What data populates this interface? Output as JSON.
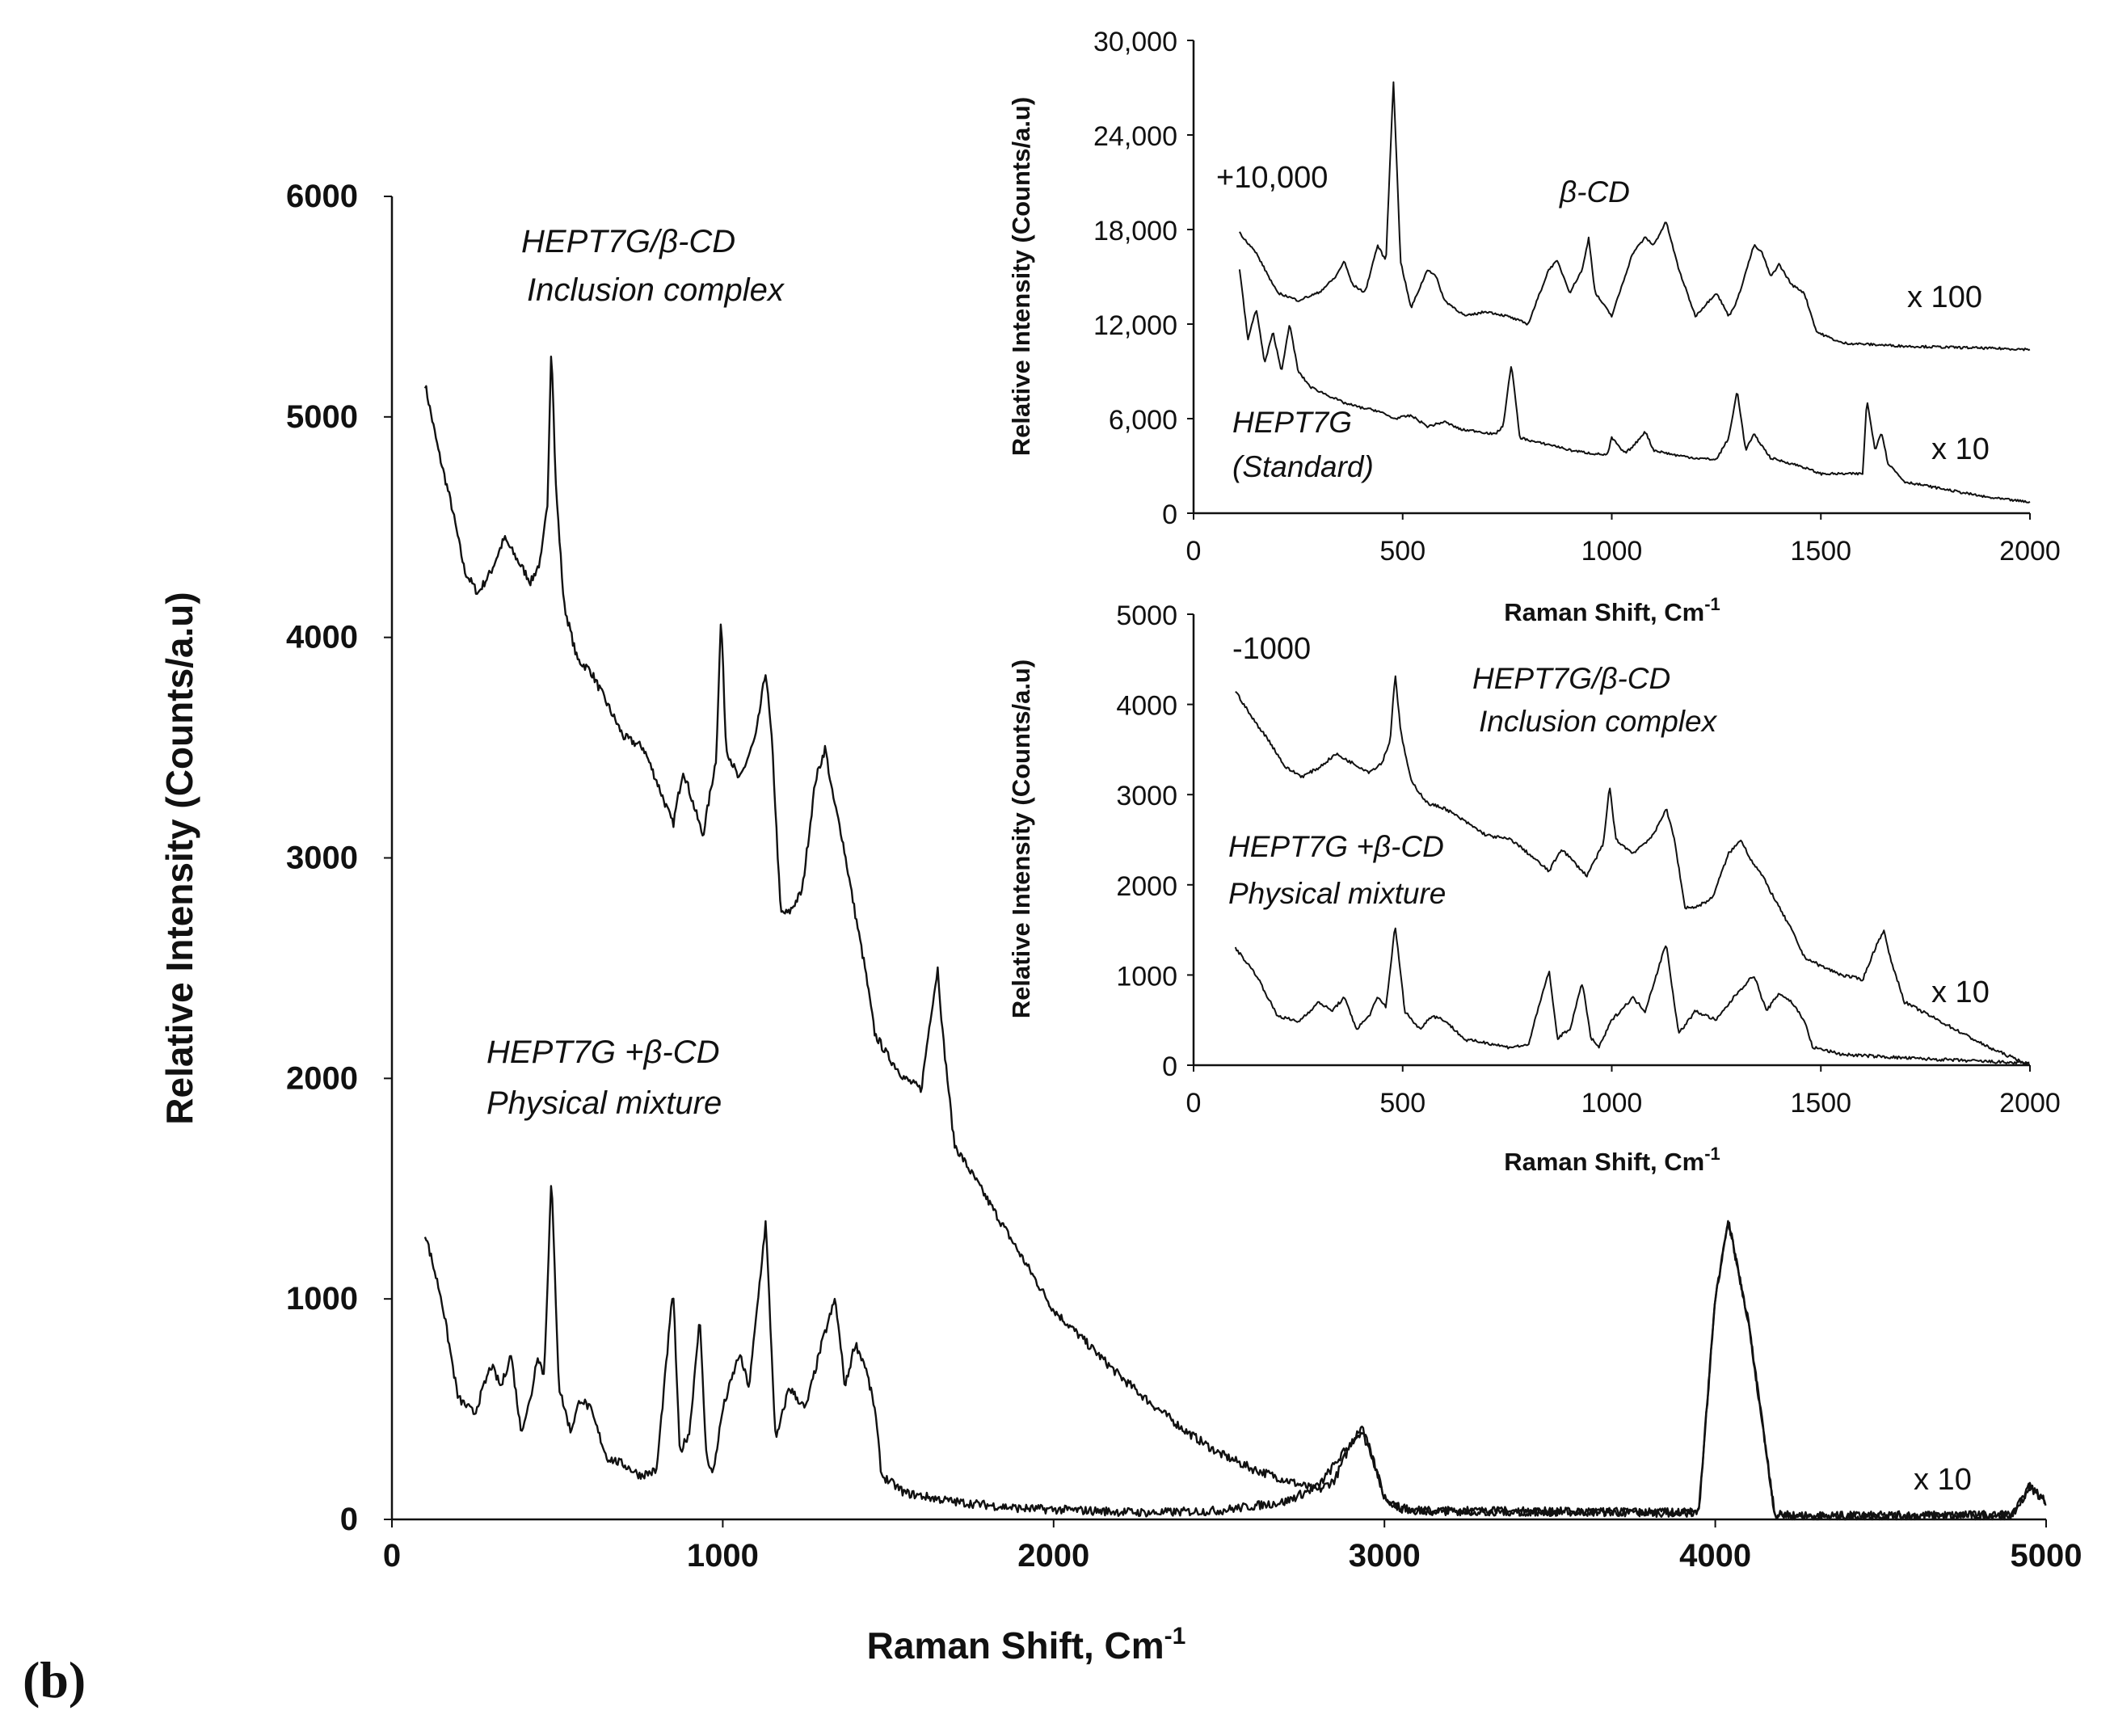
{
  "panel_label": "(b)",
  "chart_data": [
    {
      "id": "main",
      "type": "line",
      "xlabel": "Raman Shift, Cm",
      "xlabel_superscript": "-1",
      "ylabel": "Relative Intensity (Counts/a.u)",
      "xlim": [
        0,
        5000
      ],
      "ylim": [
        0,
        6000
      ],
      "x_ticks": [
        "0",
        "1000",
        "2000",
        "3000",
        "4000",
        "5000"
      ],
      "y_ticks": [
        "0",
        "1000",
        "2000",
        "3000",
        "4000",
        "5000",
        "6000"
      ],
      "annotations": [
        "HEPT7G/β-CD",
        "Inclusion complex",
        "HEPT7G +β-CD",
        "Physical mixture",
        "x 10"
      ],
      "series": [
        {
          "name": "HEPT7G/β-CD Inclusion complex",
          "x": [
            100,
            140,
            180,
            220,
            260,
            300,
            340,
            380,
            420,
            450,
            470,
            482,
            495,
            520,
            560,
            600,
            650,
            700,
            760,
            800,
            850,
            880,
            900,
            940,
            980,
            995,
            1010,
            1050,
            1100,
            1130,
            1150,
            1175,
            1200,
            1240,
            1280,
            1310,
            1330,
            1360,
            1400,
            1430,
            1460,
            1500,
            1550,
            1600,
            1630,
            1650,
            1665,
            1700,
            1800,
            1900,
            2000,
            2100,
            2200,
            2300,
            2400,
            2500,
            2600,
            2700,
            2800,
            2850,
            2900,
            2930,
            2960,
            3000,
            3050,
            3100,
            3500,
            3950,
            4000,
            4040,
            4100,
            4180,
            4300,
            4900,
            4950,
            5000
          ],
          "y": [
            5150,
            4850,
            4600,
            4300,
            4200,
            4300,
            4450,
            4350,
            4250,
            4350,
            4600,
            5350,
            4700,
            4150,
            3900,
            3850,
            3700,
            3550,
            3500,
            3350,
            3150,
            3400,
            3300,
            3100,
            3450,
            4100,
            3500,
            3350,
            3550,
            3850,
            3500,
            2750,
            2750,
            2850,
            3350,
            3500,
            3300,
            3100,
            2750,
            2500,
            2200,
            2100,
            2000,
            1950,
            2300,
            2500,
            2200,
            1700,
            1450,
            1200,
            950,
            800,
            650,
            520,
            400,
            300,
            230,
            180,
            130,
            180,
            350,
            400,
            300,
            100,
            50,
            40,
            35,
            30,
            1000,
            1350,
            900,
            20,
            15,
            20,
            150,
            80
          ]
        },
        {
          "name": "HEPT7G +β-CD Physical mixture",
          "x": [
            100,
            150,
            200,
            250,
            300,
            330,
            360,
            390,
            420,
            440,
            460,
            482,
            505,
            540,
            570,
            600,
            650,
            700,
            750,
            800,
            850,
            870,
            900,
            930,
            950,
            970,
            1000,
            1050,
            1080,
            1100,
            1130,
            1160,
            1200,
            1250,
            1300,
            1340,
            1370,
            1400,
            1430,
            1460,
            1480,
            1550,
            1700,
            1900,
            2100,
            2300,
            2500,
            2700,
            2800,
            2850,
            2900,
            2930,
            2960,
            3000,
            3050,
            3100,
            3500,
            3950,
            4000,
            4040,
            4100,
            4180,
            4300,
            4900,
            4950,
            5000
          ],
          "y": [
            1300,
            1000,
            550,
            480,
            700,
            600,
            750,
            400,
            550,
            750,
            650,
            1550,
            600,
            400,
            550,
            500,
            280,
            250,
            200,
            220,
            1050,
            300,
            400,
            920,
            300,
            200,
            500,
            750,
            600,
            900,
            1350,
            350,
            600,
            500,
            800,
            1000,
            600,
            800,
            700,
            500,
            200,
            120,
            80,
            50,
            40,
            30,
            40,
            80,
            150,
            250,
            350,
            420,
            300,
            100,
            50,
            40,
            35,
            30,
            1000,
            1350,
            900,
            20,
            15,
            20,
            150,
            80
          ]
        }
      ]
    },
    {
      "id": "inset_top",
      "type": "line",
      "xlabel": "Raman Shift, Cm",
      "xlabel_superscript": "-1",
      "ylabel": "Relative Intensity (Counts/a.u)",
      "xlim": [
        0,
        2000
      ],
      "ylim": [
        0,
        30000
      ],
      "x_ticks": [
        "0",
        "500",
        "1000",
        "1500",
        "2000"
      ],
      "y_ticks": [
        "0",
        "6,000",
        "12,000",
        "18,000",
        "24,000",
        "30,000"
      ],
      "annotations": [
        "+10,000",
        "β-CD",
        "x 100",
        "HEPT7G",
        "(Standard)",
        "x 10"
      ],
      "series": [
        {
          "name": "β-CD",
          "x": [
            110,
            150,
            200,
            250,
            300,
            340,
            360,
            380,
            410,
            440,
            460,
            478,
            495,
            520,
            560,
            580,
            600,
            650,
            700,
            750,
            800,
            850,
            870,
            900,
            930,
            945,
            960,
            1000,
            1050,
            1080,
            1100,
            1130,
            1160,
            1200,
            1250,
            1280,
            1300,
            1340,
            1360,
            1380,
            1400,
            1430,
            1460,
            1490,
            1550,
            1700,
            1850,
            2000
          ],
          "y": [
            17800,
            16500,
            14000,
            13500,
            14000,
            15000,
            16000,
            14500,
            14000,
            17000,
            16000,
            27500,
            16000,
            13000,
            15500,
            15000,
            13500,
            12500,
            12800,
            12500,
            12000,
            15500,
            16000,
            14000,
            15500,
            17500,
            14000,
            12500,
            16500,
            17500,
            17000,
            18500,
            15500,
            12500,
            14000,
            12500,
            13500,
            17000,
            16500,
            15000,
            15800,
            14500,
            14000,
            11500,
            10800,
            10600,
            10500,
            10400
          ]
        },
        {
          "name": "HEPT7G (Standard)",
          "x": [
            110,
            130,
            150,
            170,
            190,
            210,
            230,
            250,
            280,
            320,
            360,
            400,
            440,
            480,
            520,
            560,
            600,
            640,
            680,
            720,
            740,
            760,
            780,
            820,
            860,
            900,
            950,
            990,
            1000,
            1030,
            1050,
            1080,
            1100,
            1150,
            1200,
            1250,
            1280,
            1300,
            1320,
            1340,
            1380,
            1450,
            1500,
            1550,
            1600,
            1610,
            1630,
            1645,
            1660,
            1700,
            1800,
            1900,
            2000
          ],
          "y": [
            15500,
            11000,
            13000,
            9500,
            11500,
            9000,
            12000,
            9000,
            8000,
            7500,
            7000,
            6700,
            6500,
            6000,
            6200,
            5500,
            5800,
            5300,
            5200,
            5000,
            5500,
            9500,
            4800,
            4500,
            4300,
            4000,
            3800,
            3700,
            4800,
            3800,
            4200,
            5200,
            4000,
            3700,
            3500,
            3400,
            4800,
            7800,
            4000,
            5000,
            3500,
            3000,
            2500,
            2500,
            2500,
            7200,
            4000,
            5200,
            3200,
            2000,
            1500,
            1000,
            700
          ]
        }
      ]
    },
    {
      "id": "inset_bottom",
      "type": "line",
      "xlabel": "Raman Shift, Cm",
      "xlabel_superscript": "-1",
      "ylabel": "Relative Intensity (Counts/a.u)",
      "xlim": [
        0,
        2000
      ],
      "ylim": [
        0,
        5000
      ],
      "x_ticks": [
        "0",
        "500",
        "1000",
        "1500",
        "2000"
      ],
      "y_ticks": [
        "0",
        "1000",
        "2000",
        "3000",
        "4000",
        "5000"
      ],
      "annotations": [
        "-1000",
        "HEPT7G/β-CD",
        "Inclusion complex",
        "HEPT7G +β-CD",
        "Physical mixture",
        "x 10"
      ],
      "series": [
        {
          "name": "HEPT7G/β-CD Inclusion complex (-1000)",
          "x": [
            100,
            140,
            180,
            220,
            260,
            300,
            340,
            380,
            420,
            450,
            470,
            482,
            495,
            520,
            560,
            600,
            650,
            700,
            760,
            800,
            850,
            880,
            900,
            940,
            980,
            995,
            1010,
            1050,
            1100,
            1130,
            1150,
            1175,
            1200,
            1240,
            1280,
            1310,
            1330,
            1360,
            1400,
            1430,
            1460,
            1500,
            1550,
            1600,
            1630,
            1650,
            1665,
            1700,
            1800,
            1900,
            2000
          ],
          "y": [
            4150,
            3850,
            3600,
            3300,
            3200,
            3300,
            3450,
            3350,
            3250,
            3350,
            3600,
            4350,
            3700,
            3150,
            2900,
            2850,
            2700,
            2550,
            2500,
            2350,
            2150,
            2400,
            2300,
            2100,
            2450,
            3100,
            2500,
            2350,
            2550,
            2850,
            2500,
            1750,
            1750,
            1850,
            2350,
            2500,
            2300,
            2100,
            1750,
            1500,
            1200,
            1100,
            1000,
            950,
            1300,
            1500,
            1200,
            700,
            450,
            200,
            0
          ]
        },
        {
          "name": "HEPT7G +β-CD Physical mixture",
          "x": [
            100,
            150,
            200,
            250,
            300,
            330,
            360,
            390,
            420,
            440,
            460,
            482,
            505,
            540,
            570,
            600,
            650,
            700,
            750,
            800,
            850,
            870,
            900,
            930,
            950,
            970,
            1000,
            1050,
            1080,
            1100,
            1130,
            1160,
            1200,
            1250,
            1300,
            1340,
            1370,
            1400,
            1430,
            1460,
            1480,
            1550,
            1700,
            1850,
            2000
          ],
          "y": [
            1300,
            1000,
            550,
            480,
            700,
            600,
            750,
            400,
            550,
            750,
            650,
            1550,
            600,
            400,
            550,
            500,
            280,
            250,
            200,
            220,
            1050,
            300,
            400,
            920,
            300,
            200,
            500,
            750,
            600,
            900,
            1350,
            350,
            600,
            500,
            800,
            1000,
            600,
            800,
            700,
            500,
            200,
            120,
            80,
            50,
            20
          ]
        }
      ]
    }
  ]
}
